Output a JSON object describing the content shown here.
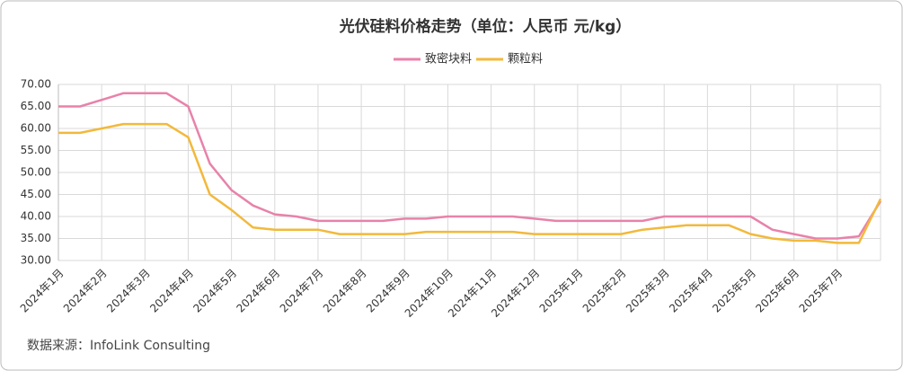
{
  "chart_data": {
    "type": "line",
    "title": "光伏硅料价格走势（单位：人民币 元/kg）",
    "source": "数据来源：InfoLink Consulting",
    "categories": [
      "2024年1月",
      null,
      "2024年2月",
      null,
      "2024年3月",
      null,
      "2024年4月",
      null,
      "2024年5月",
      null,
      "2024年6月",
      null,
      "2024年7月",
      null,
      "2024年8月",
      null,
      "2024年9月",
      null,
      "2024年10月",
      null,
      "2024年11月",
      null,
      "2024年12月",
      null,
      "2025年1月",
      null,
      "2025年2月",
      null,
      "2025年3月",
      null,
      "2025年4月",
      null,
      "2025年5月",
      null,
      "2025年6月",
      null,
      "2025年7月",
      null,
      null
    ],
    "series": [
      {
        "name": "致密块料",
        "color": "#e882aa",
        "values": [
          65,
          65,
          66.5,
          68,
          68,
          68,
          65,
          52,
          46,
          42.5,
          40.5,
          40,
          39,
          39,
          39,
          39,
          39.5,
          39.5,
          40,
          40,
          40,
          40,
          39.5,
          39,
          39,
          39,
          39,
          39,
          40,
          40,
          40,
          40,
          40,
          37,
          36,
          35,
          35,
          35.5,
          43.5
        ]
      },
      {
        "name": "颗粒料",
        "color": "#f2b93b",
        "values": [
          59,
          59,
          60,
          61,
          61,
          61,
          58,
          45,
          41.5,
          37.5,
          37,
          37,
          37,
          36,
          36,
          36,
          36,
          36.5,
          36.5,
          36.5,
          36.5,
          36.5,
          36,
          36,
          36,
          36,
          36,
          37,
          37.5,
          38,
          38,
          38,
          36,
          35,
          34.5,
          34.5,
          34,
          34,
          44
        ]
      }
    ],
    "ylim": [
      30,
      70
    ],
    "yticks": [
      {
        "value": 30,
        "label": "30.00"
      },
      {
        "value": 35,
        "label": "35.00"
      },
      {
        "value": 40,
        "label": "40.00"
      },
      {
        "value": 45,
        "label": "45.00"
      },
      {
        "value": 50,
        "label": "50.00"
      },
      {
        "value": 55,
        "label": "55.00"
      },
      {
        "value": 60,
        "label": "60.00"
      },
      {
        "value": 65,
        "label": "65.00"
      },
      {
        "value": 70,
        "label": "70.00"
      }
    ],
    "grid": true,
    "legend": "top"
  }
}
